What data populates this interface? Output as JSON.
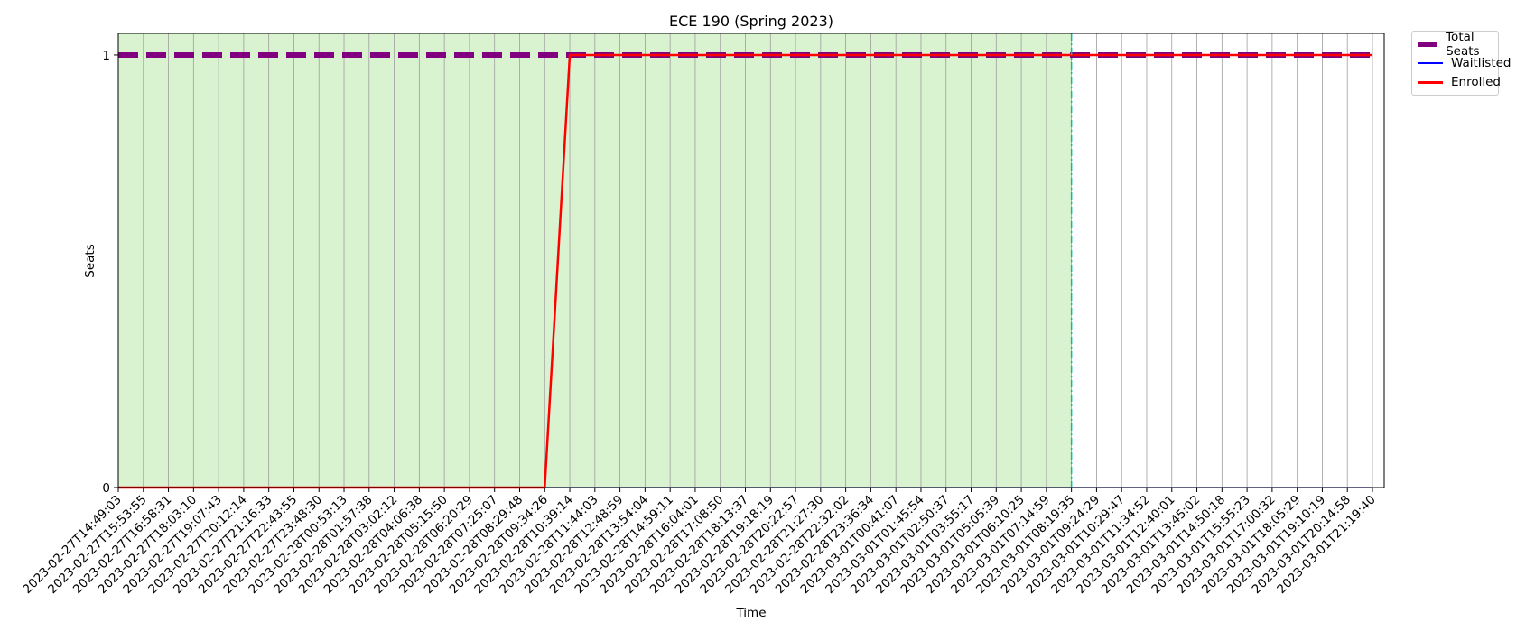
{
  "chart_data": {
    "type": "line",
    "title": "ECE 190 (Spring 2023)",
    "xlabel": "Time",
    "ylabel": "Seats",
    "yticks": [
      0,
      1
    ],
    "ylim": [
      0,
      1.05
    ],
    "grid": "vertical",
    "legend_placement": "outside upper right",
    "colors": {
      "total_seats": "#800080",
      "waitlisted": "#0000ff",
      "enrolled": "#ff0000",
      "shading": "#d9f2d0",
      "marker_line": "#00c0a0"
    },
    "x": [
      "2023-02-27T14:49:03",
      "2023-02-27T15:53:55",
      "2023-02-27T16:58:31",
      "2023-02-27T18:03:10",
      "2023-02-27T19:07:43",
      "2023-02-27T20:12:14",
      "2023-02-27T21:16:33",
      "2023-02-27T22:43:55",
      "2023-02-27T23:48:30",
      "2023-02-28T00:53:13",
      "2023-02-28T01:57:38",
      "2023-02-28T03:02:12",
      "2023-02-28T04:06:38",
      "2023-02-28T05:15:50",
      "2023-02-28T06:20:29",
      "2023-02-28T07:25:07",
      "2023-02-28T08:29:48",
      "2023-02-28T09:34:26",
      "2023-02-28T10:39:14",
      "2023-02-28T11:44:03",
      "2023-02-28T12:48:59",
      "2023-02-28T13:54:04",
      "2023-02-28T14:59:11",
      "2023-02-28T16:04:01",
      "2023-02-28T17:08:50",
      "2023-02-28T18:13:37",
      "2023-02-28T19:18:19",
      "2023-02-28T20:22:57",
      "2023-02-28T21:27:30",
      "2023-02-28T22:32:02",
      "2023-02-28T23:36:34",
      "2023-03-01T00:41:07",
      "2023-03-01T01:45:54",
      "2023-03-01T02:50:37",
      "2023-03-01T03:55:17",
      "2023-03-01T05:05:39",
      "2023-03-01T06:10:25",
      "2023-03-01T07:14:59",
      "2023-03-01T08:19:35",
      "2023-03-01T09:24:29",
      "2023-03-01T10:29:47",
      "2023-03-01T11:34:52",
      "2023-03-01T12:40:01",
      "2023-03-01T13:45:02",
      "2023-03-01T14:50:18",
      "2023-03-01T15:55:23",
      "2023-03-01T17:00:32",
      "2023-03-01T18:05:29",
      "2023-03-01T19:10:19",
      "2023-03-01T20:14:58",
      "2023-03-01T21:19:40"
    ],
    "series": [
      {
        "name": "Total Seats",
        "style": "dashed",
        "values": [
          1,
          1,
          1,
          1,
          1,
          1,
          1,
          1,
          1,
          1,
          1,
          1,
          1,
          1,
          1,
          1,
          1,
          1,
          1,
          1,
          1,
          1,
          1,
          1,
          1,
          1,
          1,
          1,
          1,
          1,
          1,
          1,
          1,
          1,
          1,
          1,
          1,
          1,
          1,
          1,
          1,
          1,
          1,
          1,
          1,
          1,
          1,
          1,
          1,
          1,
          1
        ]
      },
      {
        "name": "Waitlisted",
        "style": "solid",
        "values": [
          0,
          0,
          0,
          0,
          0,
          0,
          0,
          0,
          0,
          0,
          0,
          0,
          0,
          0,
          0,
          0,
          0,
          0,
          0,
          0,
          0,
          0,
          0,
          0,
          0,
          0,
          0,
          0,
          0,
          0,
          0,
          0,
          0,
          0,
          0,
          0,
          0,
          0,
          0,
          0,
          0,
          0,
          0,
          0,
          0,
          0,
          0,
          0,
          0,
          0,
          0
        ]
      },
      {
        "name": "Enrolled",
        "style": "solid",
        "values": [
          0,
          0,
          0,
          0,
          0,
          0,
          0,
          0,
          0,
          0,
          0,
          0,
          0,
          0,
          0,
          0,
          0,
          0,
          1,
          1,
          1,
          1,
          1,
          1,
          1,
          1,
          1,
          1,
          1,
          1,
          1,
          1,
          1,
          1,
          1,
          1,
          1,
          1,
          1,
          1,
          1,
          1,
          1,
          1,
          1,
          1,
          1,
          1,
          1,
          1,
          1
        ]
      }
    ],
    "shaded_region": {
      "from": "2023-02-27T14:49:03",
      "to": "2023-03-01T08:19:35"
    },
    "vertical_marker": "2023-03-01T08:19:35"
  }
}
